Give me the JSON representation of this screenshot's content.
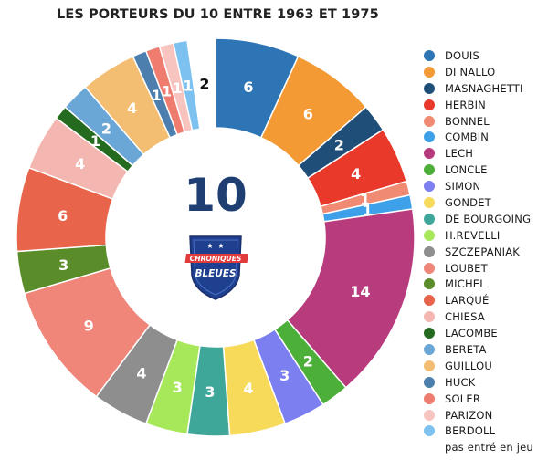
{
  "chart_data": {
    "type": "pie",
    "title": "LES PORTEURS DU 10 ENTRE 1963 ET 1975",
    "center_label": "10",
    "logo_text": [
      "CHRONIQUES",
      "BLEUES"
    ],
    "categories": [
      "DOUIS",
      "DI NALLO",
      "MASNAGHETTI",
      "HERBIN",
      "BONNEL",
      "COMBIN",
      "LECH",
      "LONCLE",
      "SIMON",
      "GONDET",
      "DE BOURGOING",
      "H.REVELLI",
      "SZCZEPANIAK",
      "LOUBET",
      "MICHEL",
      "LARQUÉ",
      "CHIESA",
      "LACOMBE",
      "BERETA",
      "GUILLOU",
      "HUCK",
      "SOLER",
      "PARIZON",
      "BERDOLL",
      "pas entré en jeu"
    ],
    "values": [
      6,
      6,
      2,
      4,
      1,
      1,
      14,
      2,
      3,
      4,
      3,
      3,
      4,
      9,
      3,
      6,
      4,
      1,
      2,
      4,
      1,
      1,
      1,
      1,
      2
    ],
    "colors": [
      "#2E75B6",
      "#F39A35",
      "#1F4E79",
      "#E8392B",
      "#F08A72",
      "#3DA0E8",
      "#B83B7D",
      "#4CAF3A",
      "#7B7FF0",
      "#F7DA5A",
      "#3FA79A",
      "#A7E85A",
      "#8E8E8E",
      "#F0857A",
      "#5B8C2A",
      "#E8644A",
      "#F4B6B0",
      "#246B1F",
      "#6AA6D6",
      "#F4BE72",
      "#4C7EAE",
      "#EE7D70",
      "#F7C4C0",
      "#7DC1F0",
      "#FFFFFF"
    ],
    "label_colors": [
      "#ffffff",
      "#ffffff",
      "#ffffff",
      "#ffffff",
      "#ffffff",
      "#ffffff",
      "#ffffff",
      "#ffffff",
      "#ffffff",
      "#ffffff",
      "#ffffff",
      "#ffffff",
      "#ffffff",
      "#ffffff",
      "#ffffff",
      "#ffffff",
      "#ffffff",
      "#ffffff",
      "#ffffff",
      "#ffffff",
      "#ffffff",
      "#ffffff",
      "#ffffff",
      "#ffffff",
      "#111111"
    ],
    "legend_placement": "right",
    "donut": true
  }
}
